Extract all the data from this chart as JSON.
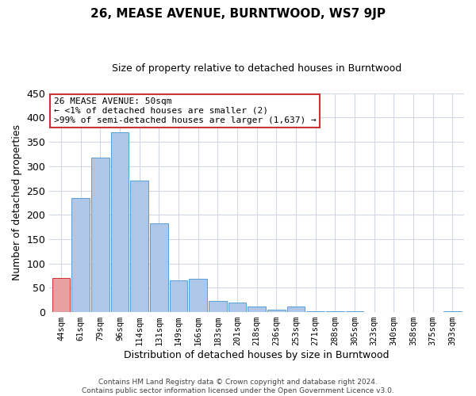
{
  "title": "26, MEASE AVENUE, BURNTWOOD, WS7 9JP",
  "subtitle": "Size of property relative to detached houses in Burntwood",
  "xlabel": "Distribution of detached houses by size in Burntwood",
  "ylabel": "Number of detached properties",
  "annotation_line1": "26 MEASE AVENUE: 50sqm",
  "annotation_line2": "← <1% of detached houses are smaller (2)",
  "annotation_line3": ">99% of semi-detached houses are larger (1,637) →",
  "bar_labels": [
    "44sqm",
    "61sqm",
    "79sqm",
    "96sqm",
    "114sqm",
    "131sqm",
    "149sqm",
    "166sqm",
    "183sqm",
    "201sqm",
    "218sqm",
    "236sqm",
    "253sqm",
    "271sqm",
    "288sqm",
    "305sqm",
    "323sqm",
    "340sqm",
    "358sqm",
    "375sqm",
    "393sqm"
  ],
  "bar_values": [
    70,
    235,
    317,
    370,
    270,
    183,
    65,
    68,
    23,
    20,
    12,
    5,
    12,
    2,
    1,
    1,
    0,
    0,
    0,
    0,
    2
  ],
  "bar_color": "#aec6e8",
  "bar_edge_color": "#5a9fd4",
  "highlight_bar_index": 0,
  "highlight_color": "#e8a0a0",
  "highlight_edge_color": "#cc3333",
  "annotation_box_edge_color": "#cc3333",
  "ylim": [
    0,
    450
  ],
  "yticks": [
    0,
    50,
    100,
    150,
    200,
    250,
    300,
    350,
    400,
    450
  ],
  "footer_line1": "Contains HM Land Registry data © Crown copyright and database right 2024.",
  "footer_line2": "Contains public sector information licensed under the Open Government Licence v3.0.",
  "background_color": "#ffffff",
  "grid_color": "#d0d8e8",
  "title_fontsize": 11,
  "subtitle_fontsize": 9,
  "ylabel_fontsize": 9,
  "xlabel_fontsize": 9,
  "xtick_fontsize": 7.5,
  "ytick_fontsize": 9,
  "footer_fontsize": 6.5
}
